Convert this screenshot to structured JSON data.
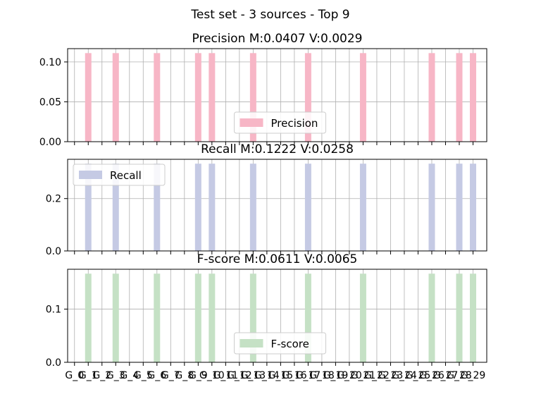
{
  "chart_data": {
    "suptitle": "Test set - 3 sources - Top 9",
    "type": "bar",
    "categories": [
      "G_0",
      "G_1",
      "G_2",
      "G_3",
      "G_4",
      "G_5",
      "G_6",
      "G_7",
      "G_8",
      "G_9",
      "G_10",
      "G_11",
      "G_12",
      "G_13",
      "G_14",
      "G_15",
      "G_16",
      "G_17",
      "G_18",
      "G_19",
      "G_20",
      "G_21",
      "G_22",
      "G_23",
      "G_24",
      "G_25",
      "G_26",
      "G_27",
      "G_28",
      "G_29"
    ],
    "grid": true,
    "panels": [
      {
        "title": "Precision M:0.0407 V:0.0029",
        "legend": "Precision",
        "legend_position": "lower center",
        "color": "#f7b6c6",
        "ylim": [
          0,
          0.1167
        ],
        "yticks": [
          0.0,
          0.05,
          0.1
        ],
        "ytick_labels": [
          "0.00",
          "0.05",
          "0.10"
        ],
        "values": [
          0,
          0.1111,
          0,
          0.1111,
          0,
          0,
          0.1111,
          0,
          0,
          0.1111,
          0.1111,
          0,
          0,
          0.1111,
          0,
          0,
          0,
          0.1111,
          0,
          0,
          0,
          0.1111,
          0,
          0,
          0,
          0,
          0.1111,
          0,
          0.1111,
          0.1111
        ]
      },
      {
        "title": "Recall M:0.1222 V:0.0258",
        "legend": "Recall",
        "legend_position": "upper left",
        "color": "#c5cae4",
        "ylim": [
          0,
          0.35
        ],
        "yticks": [
          0.0,
          0.2
        ],
        "ytick_labels": [
          "0.0",
          "0.2"
        ],
        "values": [
          0,
          0.3333,
          0,
          0.3333,
          0,
          0,
          0.3333,
          0,
          0,
          0.3333,
          0.3333,
          0,
          0,
          0.3333,
          0,
          0,
          0,
          0.3333,
          0,
          0,
          0,
          0.3333,
          0,
          0,
          0,
          0,
          0.3333,
          0,
          0.3333,
          0.3333
        ]
      },
      {
        "title": "F-score M:0.0611 V:0.0065",
        "legend": "F-score",
        "legend_position": "lower center",
        "color": "#c5e1c5",
        "ylim": [
          0,
          0.175
        ],
        "yticks": [
          0.0,
          0.1
        ],
        "ytick_labels": [
          "0.0",
          "0.1"
        ],
        "values": [
          0,
          0.1667,
          0,
          0.1667,
          0,
          0,
          0.1667,
          0,
          0,
          0.1667,
          0.1667,
          0,
          0,
          0.1667,
          0,
          0,
          0,
          0.1667,
          0,
          0,
          0,
          0.1667,
          0,
          0,
          0,
          0,
          0.1667,
          0,
          0.1667,
          0.1667
        ]
      }
    ]
  }
}
